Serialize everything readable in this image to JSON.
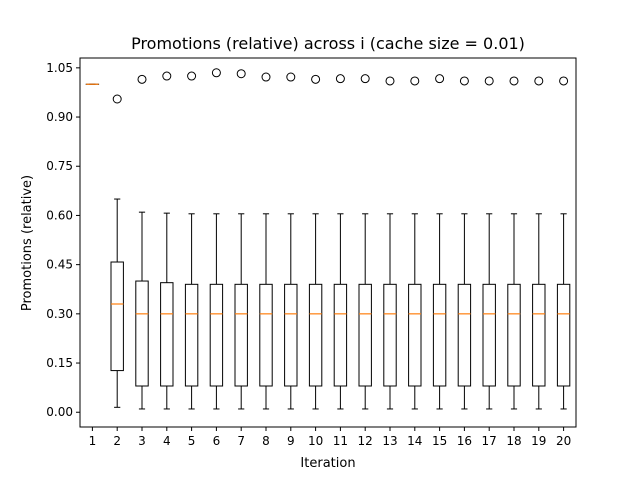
{
  "chart_data": {
    "type": "box",
    "title": "Promotions (relative) across i (cache size = 0.01)",
    "xlabel": "Iteration",
    "ylabel": "Promotions (relative)",
    "ylim": [
      -0.045,
      1.08
    ],
    "yticks": [
      "0.00",
      "0.15",
      "0.30",
      "0.45",
      "0.60",
      "0.75",
      "0.90",
      "1.05"
    ],
    "ytick_values": [
      0.0,
      0.15,
      0.3,
      0.45,
      0.6,
      0.75,
      0.9,
      1.05
    ],
    "categories": [
      "1",
      "2",
      "3",
      "4",
      "5",
      "6",
      "7",
      "8",
      "9",
      "10",
      "11",
      "12",
      "13",
      "14",
      "15",
      "16",
      "17",
      "18",
      "19",
      "20"
    ],
    "boxes": [
      {
        "whislo": 1.0,
        "q1": 1.0,
        "med": 1.0,
        "q3": 1.0,
        "whishi": 1.0,
        "fliers": []
      },
      {
        "whislo": 0.015,
        "q1": 0.127,
        "med": 0.33,
        "q3": 0.458,
        "whishi": 0.65,
        "fliers": [
          0.955
        ]
      },
      {
        "whislo": 0.01,
        "q1": 0.08,
        "med": 0.3,
        "q3": 0.4,
        "whishi": 0.61,
        "fliers": [
          1.015
        ]
      },
      {
        "whislo": 0.01,
        "q1": 0.08,
        "med": 0.3,
        "q3": 0.395,
        "whishi": 0.607,
        "fliers": [
          1.025
        ]
      },
      {
        "whislo": 0.01,
        "q1": 0.08,
        "med": 0.3,
        "q3": 0.39,
        "whishi": 0.605,
        "fliers": [
          1.025
        ]
      },
      {
        "whislo": 0.01,
        "q1": 0.08,
        "med": 0.3,
        "q3": 0.39,
        "whishi": 0.605,
        "fliers": [
          1.035
        ]
      },
      {
        "whislo": 0.01,
        "q1": 0.08,
        "med": 0.3,
        "q3": 0.39,
        "whishi": 0.605,
        "fliers": [
          1.032
        ]
      },
      {
        "whislo": 0.01,
        "q1": 0.08,
        "med": 0.3,
        "q3": 0.39,
        "whishi": 0.605,
        "fliers": [
          1.022
        ]
      },
      {
        "whislo": 0.01,
        "q1": 0.08,
        "med": 0.3,
        "q3": 0.39,
        "whishi": 0.605,
        "fliers": [
          1.022
        ]
      },
      {
        "whislo": 0.01,
        "q1": 0.08,
        "med": 0.3,
        "q3": 0.39,
        "whishi": 0.605,
        "fliers": [
          1.015
        ]
      },
      {
        "whislo": 0.01,
        "q1": 0.08,
        "med": 0.3,
        "q3": 0.39,
        "whishi": 0.605,
        "fliers": [
          1.017
        ]
      },
      {
        "whislo": 0.01,
        "q1": 0.08,
        "med": 0.3,
        "q3": 0.39,
        "whishi": 0.605,
        "fliers": [
          1.017
        ]
      },
      {
        "whislo": 0.01,
        "q1": 0.08,
        "med": 0.3,
        "q3": 0.39,
        "whishi": 0.605,
        "fliers": [
          1.01
        ]
      },
      {
        "whislo": 0.01,
        "q1": 0.08,
        "med": 0.3,
        "q3": 0.39,
        "whishi": 0.605,
        "fliers": [
          1.01
        ]
      },
      {
        "whislo": 0.01,
        "q1": 0.08,
        "med": 0.3,
        "q3": 0.39,
        "whishi": 0.605,
        "fliers": [
          1.017
        ]
      },
      {
        "whislo": 0.01,
        "q1": 0.08,
        "med": 0.3,
        "q3": 0.39,
        "whishi": 0.605,
        "fliers": [
          1.01
        ]
      },
      {
        "whislo": 0.01,
        "q1": 0.08,
        "med": 0.3,
        "q3": 0.39,
        "whishi": 0.605,
        "fliers": [
          1.01
        ]
      },
      {
        "whislo": 0.01,
        "q1": 0.08,
        "med": 0.3,
        "q3": 0.39,
        "whishi": 0.605,
        "fliers": [
          1.01
        ]
      },
      {
        "whislo": 0.01,
        "q1": 0.08,
        "med": 0.3,
        "q3": 0.39,
        "whishi": 0.605,
        "fliers": [
          1.01
        ]
      },
      {
        "whislo": 0.01,
        "q1": 0.08,
        "med": 0.3,
        "q3": 0.39,
        "whishi": 0.605,
        "fliers": [
          1.01
        ]
      }
    ],
    "colors": {
      "box": "#000000",
      "median": "#ff7f0e",
      "flier": "#000000"
    },
    "grid": false,
    "legend": "none"
  }
}
